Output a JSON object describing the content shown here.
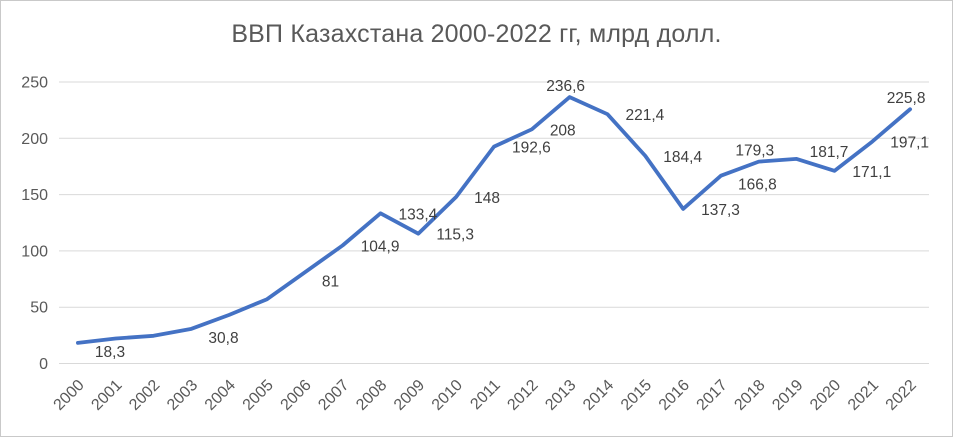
{
  "chart": {
    "colors": {
      "line": "#4472C4",
      "title": "#595959",
      "axis_labels": "#595959",
      "gridline": "#D9D9D9",
      "data_label": "#404040",
      "background": "#FFFFFF",
      "frame_border": "#C9C9C9"
    }
  },
  "chart_data": {
    "type": "line",
    "title": "ВВП Казахстана 2000-2022 гг, млрд долл.",
    "xlabel": "",
    "ylabel": "",
    "x": [
      "2000",
      "2001",
      "2002",
      "2003",
      "2004",
      "2005",
      "2006",
      "2007",
      "2008",
      "2009",
      "2010",
      "2011",
      "2012",
      "2013",
      "2014",
      "2015",
      "2016",
      "2017",
      "2018",
      "2019",
      "2020",
      "2021",
      "2022"
    ],
    "series": [
      {
        "name": "ВВП Казахстана, млрд долл.",
        "values": [
          18.3,
          22.2,
          24.6,
          30.8,
          43.2,
          57.1,
          81,
          104.9,
          133.4,
          115.3,
          148,
          192.6,
          208,
          236.6,
          221.4,
          184.4,
          137.3,
          166.8,
          179.3,
          181.7,
          171.1,
          197.1,
          225.8
        ]
      }
    ],
    "data_labels": [
      "18,3",
      null,
      null,
      "30,8",
      null,
      null,
      "81",
      "104,9",
      "133,4",
      "115,3",
      "148",
      "192,6",
      "208",
      "236,6",
      "221,4",
      "184,4",
      "137,3",
      "166,8",
      "179,3",
      "181,7",
      "171,1",
      "197,1",
      "225,8"
    ],
    "label_placement": [
      "below-right",
      null,
      null,
      "below-right",
      null,
      null,
      "below-right",
      "right",
      "right",
      "right",
      "right",
      "right",
      "right",
      "above",
      "right",
      "right",
      "right",
      "below-right",
      "above",
      "right-up",
      "right",
      "right",
      "above"
    ],
    "ylim": [
      0,
      250
    ],
    "yticks": [
      0,
      50,
      100,
      150,
      200,
      250
    ],
    "grid": "horizontal",
    "legend": "none"
  }
}
